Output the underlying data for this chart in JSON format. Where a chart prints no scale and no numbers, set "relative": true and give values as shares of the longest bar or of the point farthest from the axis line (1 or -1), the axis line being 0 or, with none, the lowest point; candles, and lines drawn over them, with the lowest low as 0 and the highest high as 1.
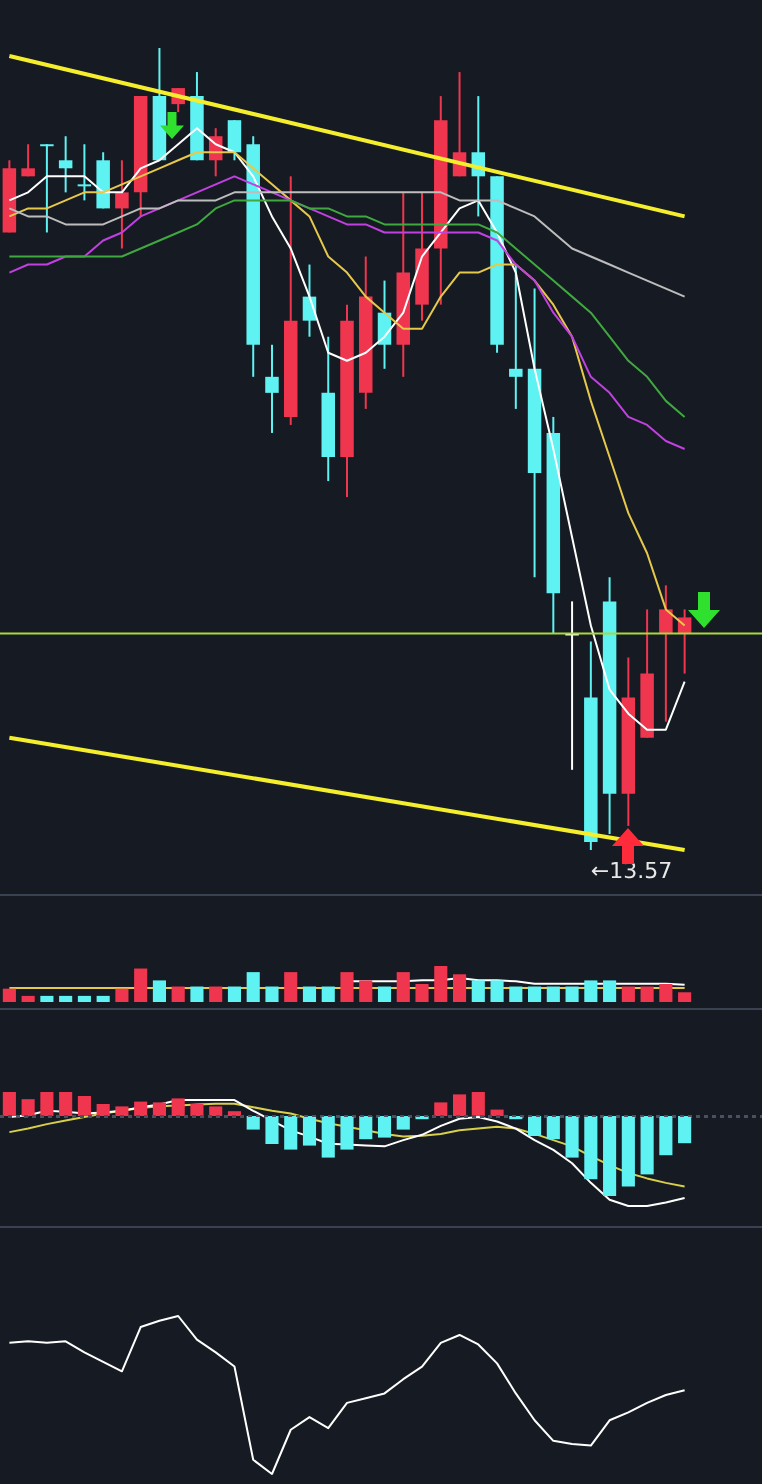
{
  "chart_data": [
    {
      "type": "candlestick",
      "relative": true,
      "categories": [
        null,
        null,
        null,
        null,
        null,
        null,
        null,
        null,
        null,
        null,
        null,
        null,
        null,
        null,
        null,
        null,
        null,
        null,
        null,
        null,
        null,
        null,
        null,
        null,
        null,
        null,
        null,
        null,
        null,
        null,
        null,
        null,
        null,
        null,
        null,
        null,
        null
      ],
      "ohlc": [
        [
          0.77,
          0.86,
          0.77,
          0.85
        ],
        [
          0.84,
          0.88,
          0.84,
          0.85
        ],
        [
          0.88,
          0.88,
          0.77,
          0.88
        ],
        [
          0.86,
          0.89,
          0.82,
          0.85
        ],
        [
          0.83,
          0.88,
          0.81,
          0.83
        ],
        [
          0.86,
          0.87,
          0.8,
          0.8
        ],
        [
          0.8,
          0.86,
          0.75,
          0.82
        ],
        [
          0.82,
          0.94,
          0.79,
          0.94
        ],
        [
          0.94,
          1,
          0.86,
          0.86
        ],
        [
          0.93,
          0.95,
          0.92,
          0.95
        ],
        [
          0.94,
          0.97,
          0.86,
          0.86
        ],
        [
          0.86,
          0.9,
          0.84,
          0.89
        ],
        [
          0.91,
          0.91,
          0.86,
          0.87
        ],
        [
          0.88,
          0.89,
          0.59,
          0.63
        ],
        [
          0.59,
          0.63,
          0.52,
          0.57
        ],
        [
          0.54,
          0.84,
          0.53,
          0.66
        ],
        [
          0.69,
          0.73,
          0.64,
          0.66
        ],
        [
          0.57,
          0.64,
          0.46,
          0.49
        ],
        [
          0.49,
          0.68,
          0.44,
          0.66
        ],
        [
          0.57,
          0.74,
          0.55,
          0.69
        ],
        [
          0.67,
          0.71,
          0.6,
          0.63
        ],
        [
          0.63,
          0.82,
          0.59,
          0.72
        ],
        [
          0.68,
          0.82,
          0.66,
          0.75
        ],
        [
          0.75,
          0.94,
          0.68,
          0.91
        ],
        [
          0.84,
          0.97,
          0.84,
          0.87
        ],
        [
          0.87,
          0.94,
          0.79,
          0.84
        ],
        [
          0.84,
          0.84,
          0.62,
          0.63
        ],
        [
          0.6,
          0.73,
          0.55,
          0.59
        ],
        [
          0.6,
          0.7,
          0.34,
          0.47
        ],
        [
          0.52,
          0.54,
          0.27,
          0.32
        ],
        [
          0.27,
          0.31,
          0.1,
          0.27
        ],
        [
          0.19,
          0.26,
          0,
          0.01
        ],
        [
          0.31,
          0.34,
          0.02,
          0.07
        ],
        [
          0.07,
          0.24,
          0.03,
          0.19
        ],
        [
          0.14,
          0.3,
          0.14,
          0.22
        ],
        [
          0.27,
          0.33,
          0.16,
          0.3
        ],
        [
          0.27,
          0.3,
          0.22,
          0.29
        ]
      ],
      "colors": [
        "#f0364f",
        "#f0364f",
        "#5ef2f2",
        "#5ef2f2",
        "#5ef2f2",
        "#5ef2f2",
        "#f0364f",
        "#f0364f",
        "#5ef2f2",
        "#f0364f",
        "#5ef2f2",
        "#f0364f",
        "#5ef2f2",
        "#5ef2f2",
        "#5ef2f2",
        "#f0364f",
        "#5ef2f2",
        "#5ef2f2",
        "#f0364f",
        "#f0364f",
        "#5ef2f2",
        "#f0364f",
        "#f0364f",
        "#f0364f",
        "#f0364f",
        "#5ef2f2",
        "#5ef2f2",
        "#5ef2f2",
        "#5ef2f2",
        "#5ef2f2",
        "#ffffff",
        "#5ef2f2",
        "#5ef2f2",
        "#f0364f",
        "#f0364f",
        "#f0364f",
        "#f0364f"
      ],
      "series": [
        {
          "type": "line",
          "color": "#bdbdbd",
          "values": [
            0.8,
            0.79,
            0.79,
            0.78,
            0.78,
            0.78,
            0.79,
            0.8,
            0.8,
            0.81,
            0.81,
            0.81,
            0.82,
            0.82,
            0.82,
            0.82,
            0.82,
            0.82,
            0.82,
            0.82,
            0.82,
            0.82,
            0.82,
            0.82,
            0.81,
            0.81,
            0.81,
            0.8,
            0.79,
            0.77,
            0.75,
            0.74,
            0.73,
            0.72,
            0.71,
            0.7,
            0.69
          ]
        },
        {
          "type": "line",
          "color": "#3fa83f",
          "values": [
            0.74,
            0.74,
            0.74,
            0.74,
            0.74,
            0.74,
            0.74,
            0.75,
            0.76,
            0.77,
            0.78,
            0.8,
            0.81,
            0.81,
            0.81,
            0.81,
            0.8,
            0.8,
            0.79,
            0.79,
            0.78,
            0.78,
            0.78,
            0.78,
            0.78,
            0.78,
            0.77,
            0.75,
            0.73,
            0.71,
            0.69,
            0.67,
            0.64,
            0.61,
            0.59,
            0.56,
            0.54
          ]
        },
        {
          "type": "line",
          "color": "#c040e0",
          "values": [
            0.72,
            0.73,
            0.73,
            0.74,
            0.74,
            0.76,
            0.77,
            0.79,
            0.8,
            0.81,
            0.82,
            0.83,
            0.84,
            0.83,
            0.82,
            0.81,
            0.8,
            0.79,
            0.78,
            0.78,
            0.77,
            0.77,
            0.77,
            0.77,
            0.77,
            0.77,
            0.76,
            0.73,
            0.71,
            0.67,
            0.64,
            0.59,
            0.57,
            0.54,
            0.53,
            0.51,
            0.5
          ]
        },
        {
          "type": "line",
          "color": "#e6c84a",
          "values": [
            0.79,
            0.8,
            0.8,
            0.81,
            0.82,
            0.82,
            0.83,
            0.84,
            0.85,
            0.86,
            0.87,
            0.87,
            0.87,
            0.85,
            0.83,
            0.81,
            0.79,
            0.74,
            0.72,
            0.69,
            0.67,
            0.65,
            0.65,
            0.69,
            0.72,
            0.72,
            0.73,
            0.73,
            0.71,
            0.68,
            0.64,
            0.56,
            0.49,
            0.42,
            0.37,
            0.3,
            0.28
          ]
        },
        {
          "type": "line",
          "color": "#ffffff",
          "values": [
            0.81,
            0.82,
            0.84,
            0.84,
            0.84,
            0.82,
            0.82,
            0.85,
            0.86,
            0.88,
            0.9,
            0.88,
            0.87,
            0.84,
            0.79,
            0.75,
            0.69,
            0.62,
            0.61,
            0.62,
            0.64,
            0.67,
            0.74,
            0.77,
            0.8,
            0.81,
            0.77,
            0.72,
            0.6,
            0.5,
            0.39,
            0.28,
            0.2,
            0.17,
            0.15,
            0.15,
            0.21
          ]
        },
        {
          "type": "line",
          "color": "#f5ee2c",
          "values": [
            0.99,
            null,
            null,
            null,
            null,
            null,
            null,
            null,
            null,
            null,
            null,
            null,
            null,
            null,
            null,
            null,
            null,
            null,
            null,
            null,
            null,
            null,
            null,
            null,
            null,
            null,
            null,
            null,
            null,
            null,
            null,
            null,
            null,
            null,
            null,
            null,
            0.79
          ]
        },
        {
          "type": "line",
          "color": "#f5ee2c",
          "values": [
            0.14,
            null,
            null,
            null,
            null,
            null,
            null,
            null,
            null,
            null,
            null,
            null,
            null,
            null,
            null,
            null,
            null,
            null,
            null,
            null,
            null,
            null,
            null,
            null,
            null,
            null,
            null,
            null,
            null,
            null,
            null,
            null,
            null,
            null,
            null,
            null,
            0.0
          ]
        }
      ],
      "ref_lines": [
        {
          "axis": "y",
          "value": 0.27,
          "color": "#a8d83a"
        }
      ],
      "annotations": [
        {
          "text": "←13.57",
          "y": 0
        }
      ]
    },
    {
      "type": "bar",
      "relative": true,
      "categories": [
        null,
        null,
        null,
        null,
        null,
        null,
        null,
        null,
        null,
        null,
        null,
        null,
        null,
        null,
        null,
        null,
        null,
        null,
        null,
        null,
        null,
        null,
        null,
        null,
        null,
        null,
        null,
        null,
        null,
        null,
        null,
        null,
        null,
        null,
        null,
        null,
        null
      ],
      "colors": [
        "#f0364f",
        "#f0364f",
        "#5ef2f2",
        "#5ef2f2",
        "#5ef2f2",
        "#5ef2f2",
        "#f0364f",
        "#f0364f",
        "#5ef2f2",
        "#f0364f",
        "#5ef2f2",
        "#f0364f",
        "#5ef2f2",
        "#5ef2f2",
        "#5ef2f2",
        "#f0364f",
        "#5ef2f2",
        "#5ef2f2",
        "#f0364f",
        "#f0364f",
        "#5ef2f2",
        "#f0364f",
        "#f0364f",
        "#f0364f",
        "#f0364f",
        "#5ef2f2",
        "#5ef2f2",
        "#5ef2f2",
        "#5ef2f2",
        "#5ef2f2",
        "#5ef2f2",
        "#5ef2f2",
        "#5ef2f2",
        "#f0364f",
        "#f0364f",
        "#f0364f",
        "#f0364f"
      ],
      "values": [
        0.37,
        0.17,
        0.17,
        0.17,
        0.17,
        0.17,
        0.37,
        0.93,
        0.6,
        0.43,
        0.43,
        0.43,
        0.43,
        0.83,
        0.43,
        0.83,
        0.43,
        0.43,
        0.83,
        0.6,
        0.43,
        0.83,
        0.5,
        1,
        0.77,
        0.6,
        0.6,
        0.43,
        0.43,
        0.43,
        0.43,
        0.6,
        0.6,
        0.43,
        0.43,
        0.5,
        0.27
      ]
    },
    {
      "type": "line",
      "relative": true,
      "categories": [
        null,
        null,
        null,
        null,
        null,
        null,
        null,
        null,
        null,
        null,
        null,
        null,
        null,
        null,
        null,
        null,
        null,
        null,
        null,
        null,
        null,
        null,
        null,
        null,
        null,
        null,
        null,
        null,
        null,
        null,
        null,
        null,
        null,
        null,
        null,
        null,
        null
      ],
      "series": [
        {
          "type": "line",
          "color": "#e6c84a",
          "values": [
            0,
            0,
            0,
            0,
            0,
            0,
            0,
            0,
            0,
            0,
            0,
            0,
            0,
            0,
            0,
            0,
            0,
            0,
            0,
            0,
            0,
            0,
            0,
            0,
            0,
            0,
            0,
            0,
            0,
            0,
            0,
            0,
            0,
            0,
            0,
            0,
            0
          ]
        },
        {
          "type": "line",
          "color": "#ffffff",
          "values": [
            null,
            null,
            null,
            null,
            null,
            null,
            null,
            null,
            null,
            null,
            null,
            null,
            null,
            null,
            null,
            null,
            null,
            null,
            0.67,
            0.67,
            0.67,
            0.67,
            0.77,
            0.77,
            1,
            0.77,
            0.77,
            0.67,
            0.43,
            0.43,
            0.43,
            0.43,
            0.43,
            0.43,
            0.43,
            0.43,
            0.33
          ]
        }
      ]
    },
    {
      "type": "bar",
      "relative": true,
      "categories": [
        null,
        null,
        null,
        null,
        null,
        null,
        null,
        null,
        null,
        null,
        null,
        null,
        null,
        null,
        null,
        null,
        null,
        null,
        null,
        null,
        null,
        null,
        null,
        null,
        null,
        null,
        null,
        null,
        null,
        null,
        null,
        null,
        null,
        null,
        null,
        null,
        null
      ],
      "colors": [
        "#f0364f",
        "#f0364f",
        "#f0364f",
        "#f0364f",
        "#f0364f",
        "#f0364f",
        "#f0364f",
        "#f0364f",
        "#f0364f",
        "#f0364f",
        "#f0364f",
        "#f0364f",
        "#f0364f",
        "#5ef2f2",
        "#5ef2f2",
        "#5ef2f2",
        "#5ef2f2",
        "#5ef2f2",
        "#5ef2f2",
        "#5ef2f2",
        "#5ef2f2",
        "#5ef2f2",
        "#5ef2f2",
        "#f0364f",
        "#f0364f",
        "#f0364f",
        "#f0364f",
        "#5ef2f2",
        "#5ef2f2",
        "#5ef2f2",
        "#5ef2f2",
        "#5ef2f2",
        "#5ef2f2",
        "#5ef2f2",
        "#5ef2f2",
        "#5ef2f2",
        "#5ef2f2"
      ],
      "values": [
        0.3,
        0.21,
        0.3,
        0.3,
        0.25,
        0.15,
        0.12,
        0.18,
        0.17,
        0.22,
        0.15,
        0.12,
        0.06,
        -0.17,
        -0.35,
        -0.42,
        -0.37,
        -0.52,
        -0.42,
        -0.29,
        -0.27,
        -0.17,
        -0.04,
        0.17,
        0.27,
        0.3,
        0.08,
        -0.04,
        -0.25,
        -0.29,
        -0.52,
        -0.79,
        -1,
        -0.88,
        -0.73,
        -0.49,
        -0.34
      ],
      "ref_lines": [
        {
          "axis": "y",
          "value": 0,
          "color": "#4a5060",
          "line_style": "dotted"
        }
      ]
    },
    {
      "type": "line",
      "relative": true,
      "categories": [
        null,
        null,
        null,
        null,
        null,
        null,
        null,
        null,
        null,
        null,
        null,
        null,
        null,
        null,
        null,
        null,
        null,
        null,
        null,
        null,
        null,
        null,
        null,
        null,
        null,
        null,
        null,
        null,
        null,
        null,
        null,
        null,
        null,
        null,
        null,
        null,
        null
      ],
      "series": [
        {
          "type": "line",
          "color": "#ffffff",
          "values": [
            0,
            0.02,
            0.07,
            0.06,
            0.04,
            0.05,
            0.07,
            0.11,
            0.14,
            0.19,
            0.19,
            0.19,
            0.19,
            0.07,
            -0.04,
            -0.15,
            -0.22,
            -0.3,
            -0.31,
            -0.32,
            -0.33,
            -0.26,
            -0.2,
            -0.1,
            -0.02,
            0,
            -0.05,
            -0.13,
            -0.26,
            -0.37,
            -0.52,
            -0.74,
            -0.93,
            -1,
            -1,
            -0.96,
            -0.91
          ]
        },
        {
          "type": "line",
          "color": "#d8d04a",
          "values": [
            -0.17,
            -0.13,
            -0.08,
            -0.04,
            0,
            0.04,
            0.07,
            0.1,
            0.12,
            0.13,
            0.14,
            0.15,
            0.15,
            0.11,
            0.07,
            0.04,
            -0.02,
            -0.07,
            -0.11,
            -0.15,
            -0.19,
            -0.22,
            -0.21,
            -0.19,
            -0.15,
            -0.13,
            -0.11,
            -0.13,
            -0.19,
            -0.26,
            -0.33,
            -0.44,
            -0.54,
            -0.63,
            -0.69,
            -0.74,
            -0.78
          ]
        }
      ],
      "ref_lines": [
        {
          "axis": "y",
          "value": 0,
          "color": "#4a5060",
          "line_style": "dotted"
        }
      ]
    },
    {
      "type": "line",
      "relative": true,
      "color": "#ffffff",
      "categories": [
        null,
        null,
        null,
        null,
        null,
        null,
        null,
        null,
        null,
        null,
        null,
        null,
        null,
        null,
        null,
        null,
        null,
        null,
        null,
        null,
        null,
        null,
        null,
        null,
        null,
        null,
        null,
        null,
        null,
        null,
        null,
        null,
        null,
        null,
        null,
        null,
        null
      ],
      "values": [
        0.83,
        0.84,
        0.83,
        0.84,
        0.77,
        0.71,
        0.65,
        0.93,
        0.97,
        1,
        0.85,
        0.77,
        0.68,
        0.09,
        0,
        0.28,
        0.36,
        0.29,
        0.45,
        0.48,
        0.51,
        0.6,
        0.68,
        0.83,
        0.88,
        0.82,
        0.7,
        0.51,
        0.34,
        0.21,
        0.19,
        0.18,
        0.34,
        0.39,
        0.45,
        0.5,
        0.53
      ]
    }
  ]
}
